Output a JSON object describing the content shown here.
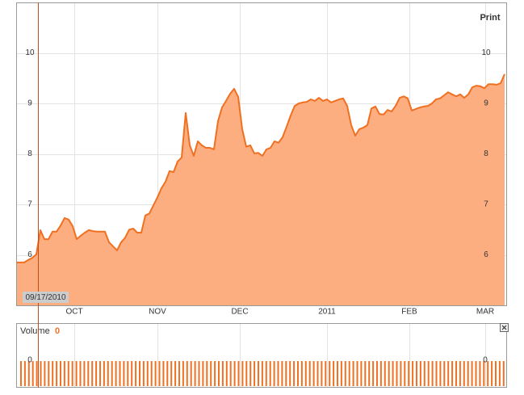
{
  "chart_data": {
    "type": "area",
    "print_label": "Print",
    "cursor": {
      "label": "09/17/2010",
      "x": 5.4
    },
    "values": [
      5.85,
      5.85,
      5.85,
      5.9,
      5.94,
      6.01,
      6.49,
      6.31,
      6.31,
      6.46,
      6.46,
      6.58,
      6.73,
      6.7,
      6.57,
      6.31,
      6.38,
      6.44,
      6.49,
      6.47,
      6.46,
      6.46,
      6.46,
      6.25,
      6.17,
      6.09,
      6.25,
      6.34,
      6.5,
      6.52,
      6.44,
      6.44,
      6.78,
      6.82,
      6.98,
      7.14,
      7.32,
      7.45,
      7.66,
      7.64,
      7.85,
      7.93,
      8.81,
      8.17,
      7.96,
      8.25,
      8.17,
      8.12,
      8.12,
      8.09,
      8.65,
      8.92,
      9.05,
      9.19,
      9.29,
      9.13,
      8.49,
      8.14,
      8.17,
      8.01,
      8.02,
      7.96,
      8.09,
      8.12,
      8.25,
      8.22,
      8.33,
      8.54,
      8.76,
      8.95,
      9.0,
      9.02,
      9.03,
      9.08,
      9.05,
      9.11,
      9.05,
      9.08,
      9.02,
      9.05,
      9.08,
      9.1,
      8.95,
      8.57,
      8.36,
      8.49,
      8.52,
      8.57,
      8.9,
      8.94,
      8.79,
      8.78,
      8.87,
      8.84,
      8.95,
      9.11,
      9.14,
      9.1,
      8.86,
      8.89,
      8.92,
      8.94,
      8.95,
      9.0,
      9.08,
      9.1,
      9.16,
      9.22,
      9.18,
      9.14,
      9.18,
      9.11,
      9.18,
      9.32,
      9.35,
      9.34,
      9.3,
      9.38,
      9.38,
      9.37,
      9.4,
      9.58
    ],
    "color": "#f07022",
    "fill": "#fcae80",
    "xlim": [
      0,
      121.6
    ],
    "xticks": [
      {
        "value": 14.4,
        "label": "OCT"
      },
      {
        "value": 35,
        "label": "NOV"
      },
      {
        "value": 55.4,
        "label": "DEC"
      },
      {
        "value": 77,
        "label": "2011"
      },
      {
        "value": 97.4,
        "label": "FEB"
      },
      {
        "value": 116.2,
        "label": "MAR"
      }
    ],
    "ylim": [
      5,
      11
    ],
    "yticks": [
      6,
      7,
      8,
      9,
      10
    ],
    "grid": true,
    "volume": {
      "label": "Volume",
      "value": 0,
      "yticks": [
        0
      ]
    }
  }
}
